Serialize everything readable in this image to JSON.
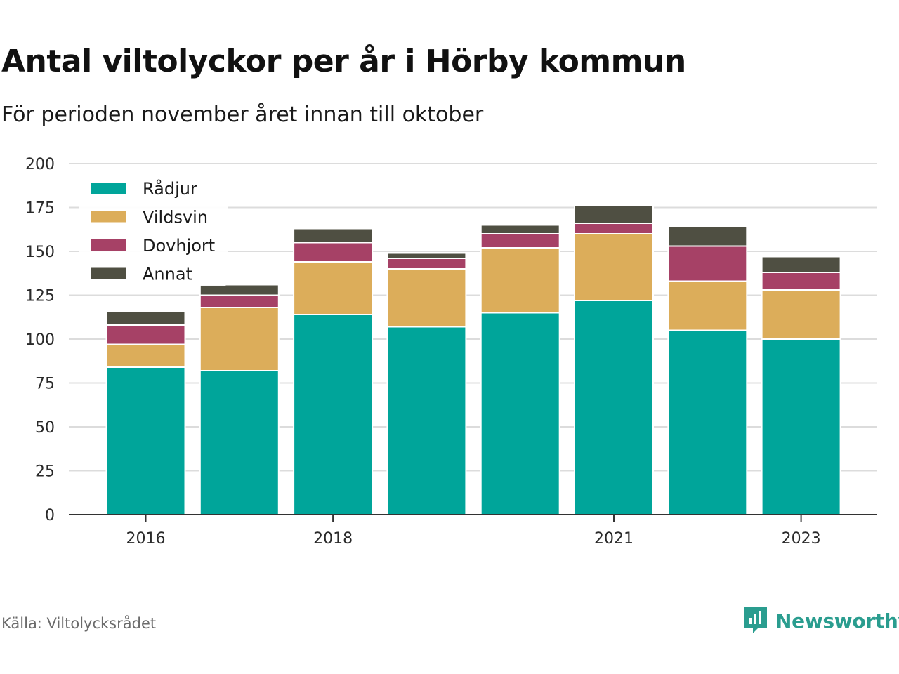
{
  "title": "Antal viltolyckor per år i Hörby kommun",
  "subtitle": "För perioden november året innan till oktober",
  "source": "Källa: Viltolycksrådet",
  "brand": {
    "name": "Newsworthy",
    "icon": "newsworthy-logo-icon",
    "color": "#2a9d8f"
  },
  "chart_data": {
    "type": "bar",
    "stacked": true,
    "categories": [
      "2016",
      "2017",
      "2018",
      "2019",
      "2020",
      "2021",
      "2022",
      "2023"
    ],
    "x_tick_labels": [
      "2016",
      "",
      "2018",
      "",
      "",
      "2021",
      "",
      "2023"
    ],
    "ylim": [
      0,
      200
    ],
    "yticks": [
      0,
      25,
      50,
      75,
      100,
      125,
      150,
      175,
      200
    ],
    "grid": true,
    "legend_position": "top-left",
    "series": [
      {
        "name": "Rådjur",
        "color": "#00a59a",
        "values": [
          84,
          82,
          114,
          107,
          115,
          122,
          105,
          100
        ]
      },
      {
        "name": "Vildsvin",
        "color": "#dcad5a",
        "values": [
          13,
          36,
          30,
          33,
          37,
          38,
          28,
          28
        ]
      },
      {
        "name": "Dovhjort",
        "color": "#a64166",
        "values": [
          11,
          7,
          11,
          6,
          8,
          6,
          20,
          10
        ]
      },
      {
        "name": "Annat",
        "color": "#4f4f42",
        "values": [
          8,
          6,
          8,
          3,
          5,
          10,
          11,
          9
        ]
      }
    ]
  }
}
